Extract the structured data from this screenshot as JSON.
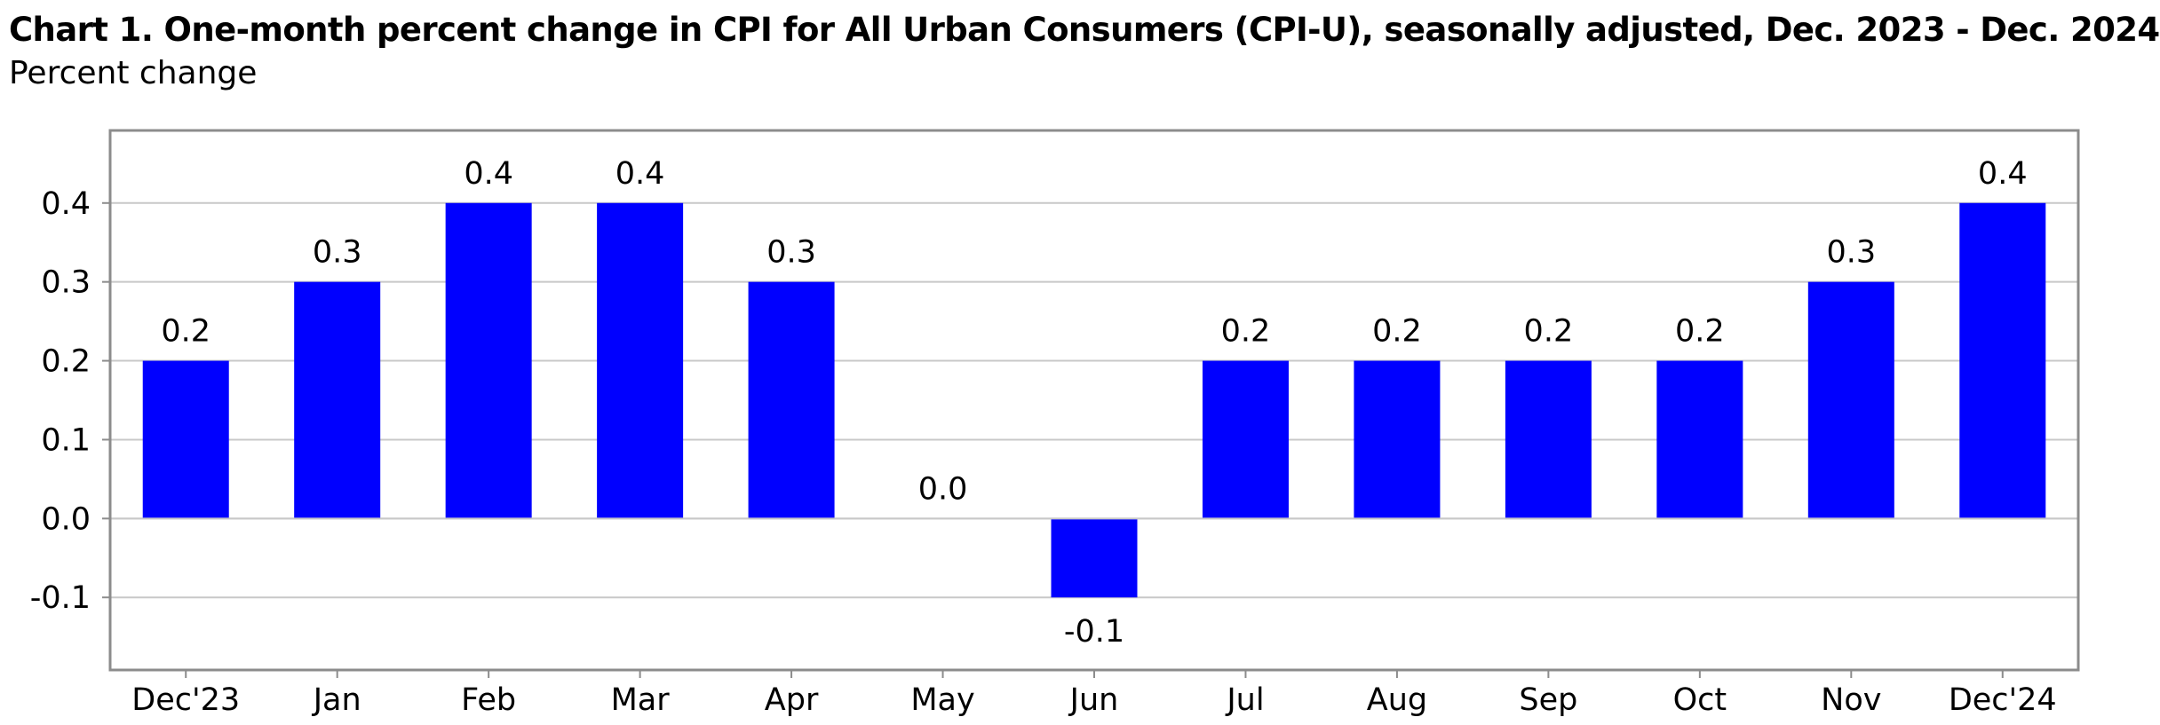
{
  "chart_data": {
    "type": "bar",
    "title": "Chart 1. One-month percent change in CPI for All Urban Consumers (CPI-U), seasonally adjusted, Dec. 2023 - Dec. 2024",
    "subtitle": "Percent change",
    "xlabel": "",
    "ylabel": "",
    "categories": [
      "Dec'23",
      "Jan",
      "Feb",
      "Mar",
      "Apr",
      "May",
      "Jun",
      "Jul",
      "Aug",
      "Sep",
      "Oct",
      "Nov",
      "Dec'24"
    ],
    "values": [
      0.2,
      0.3,
      0.4,
      0.4,
      0.3,
      0.0,
      -0.1,
      0.2,
      0.2,
      0.2,
      0.2,
      0.3,
      0.4
    ],
    "value_labels": [
      "0.2",
      "0.3",
      "0.4",
      "0.4",
      "0.3",
      "0.0",
      "-0.1",
      "0.2",
      "0.2",
      "0.2",
      "0.2",
      "0.3",
      "0.4"
    ],
    "yticks": [
      -0.1,
      0.0,
      0.1,
      0.2,
      0.3,
      0.4
    ],
    "ytick_labels": [
      "-0.1",
      "0.0",
      "0.1",
      "0.2",
      "0.3",
      "0.4"
    ],
    "ylim": [
      -0.192,
      0.492
    ],
    "grid": true,
    "legend": "none",
    "bar_color": "#0000FF",
    "grid_color": "#C8C8C8",
    "frame_color": "#8C8C8C"
  }
}
